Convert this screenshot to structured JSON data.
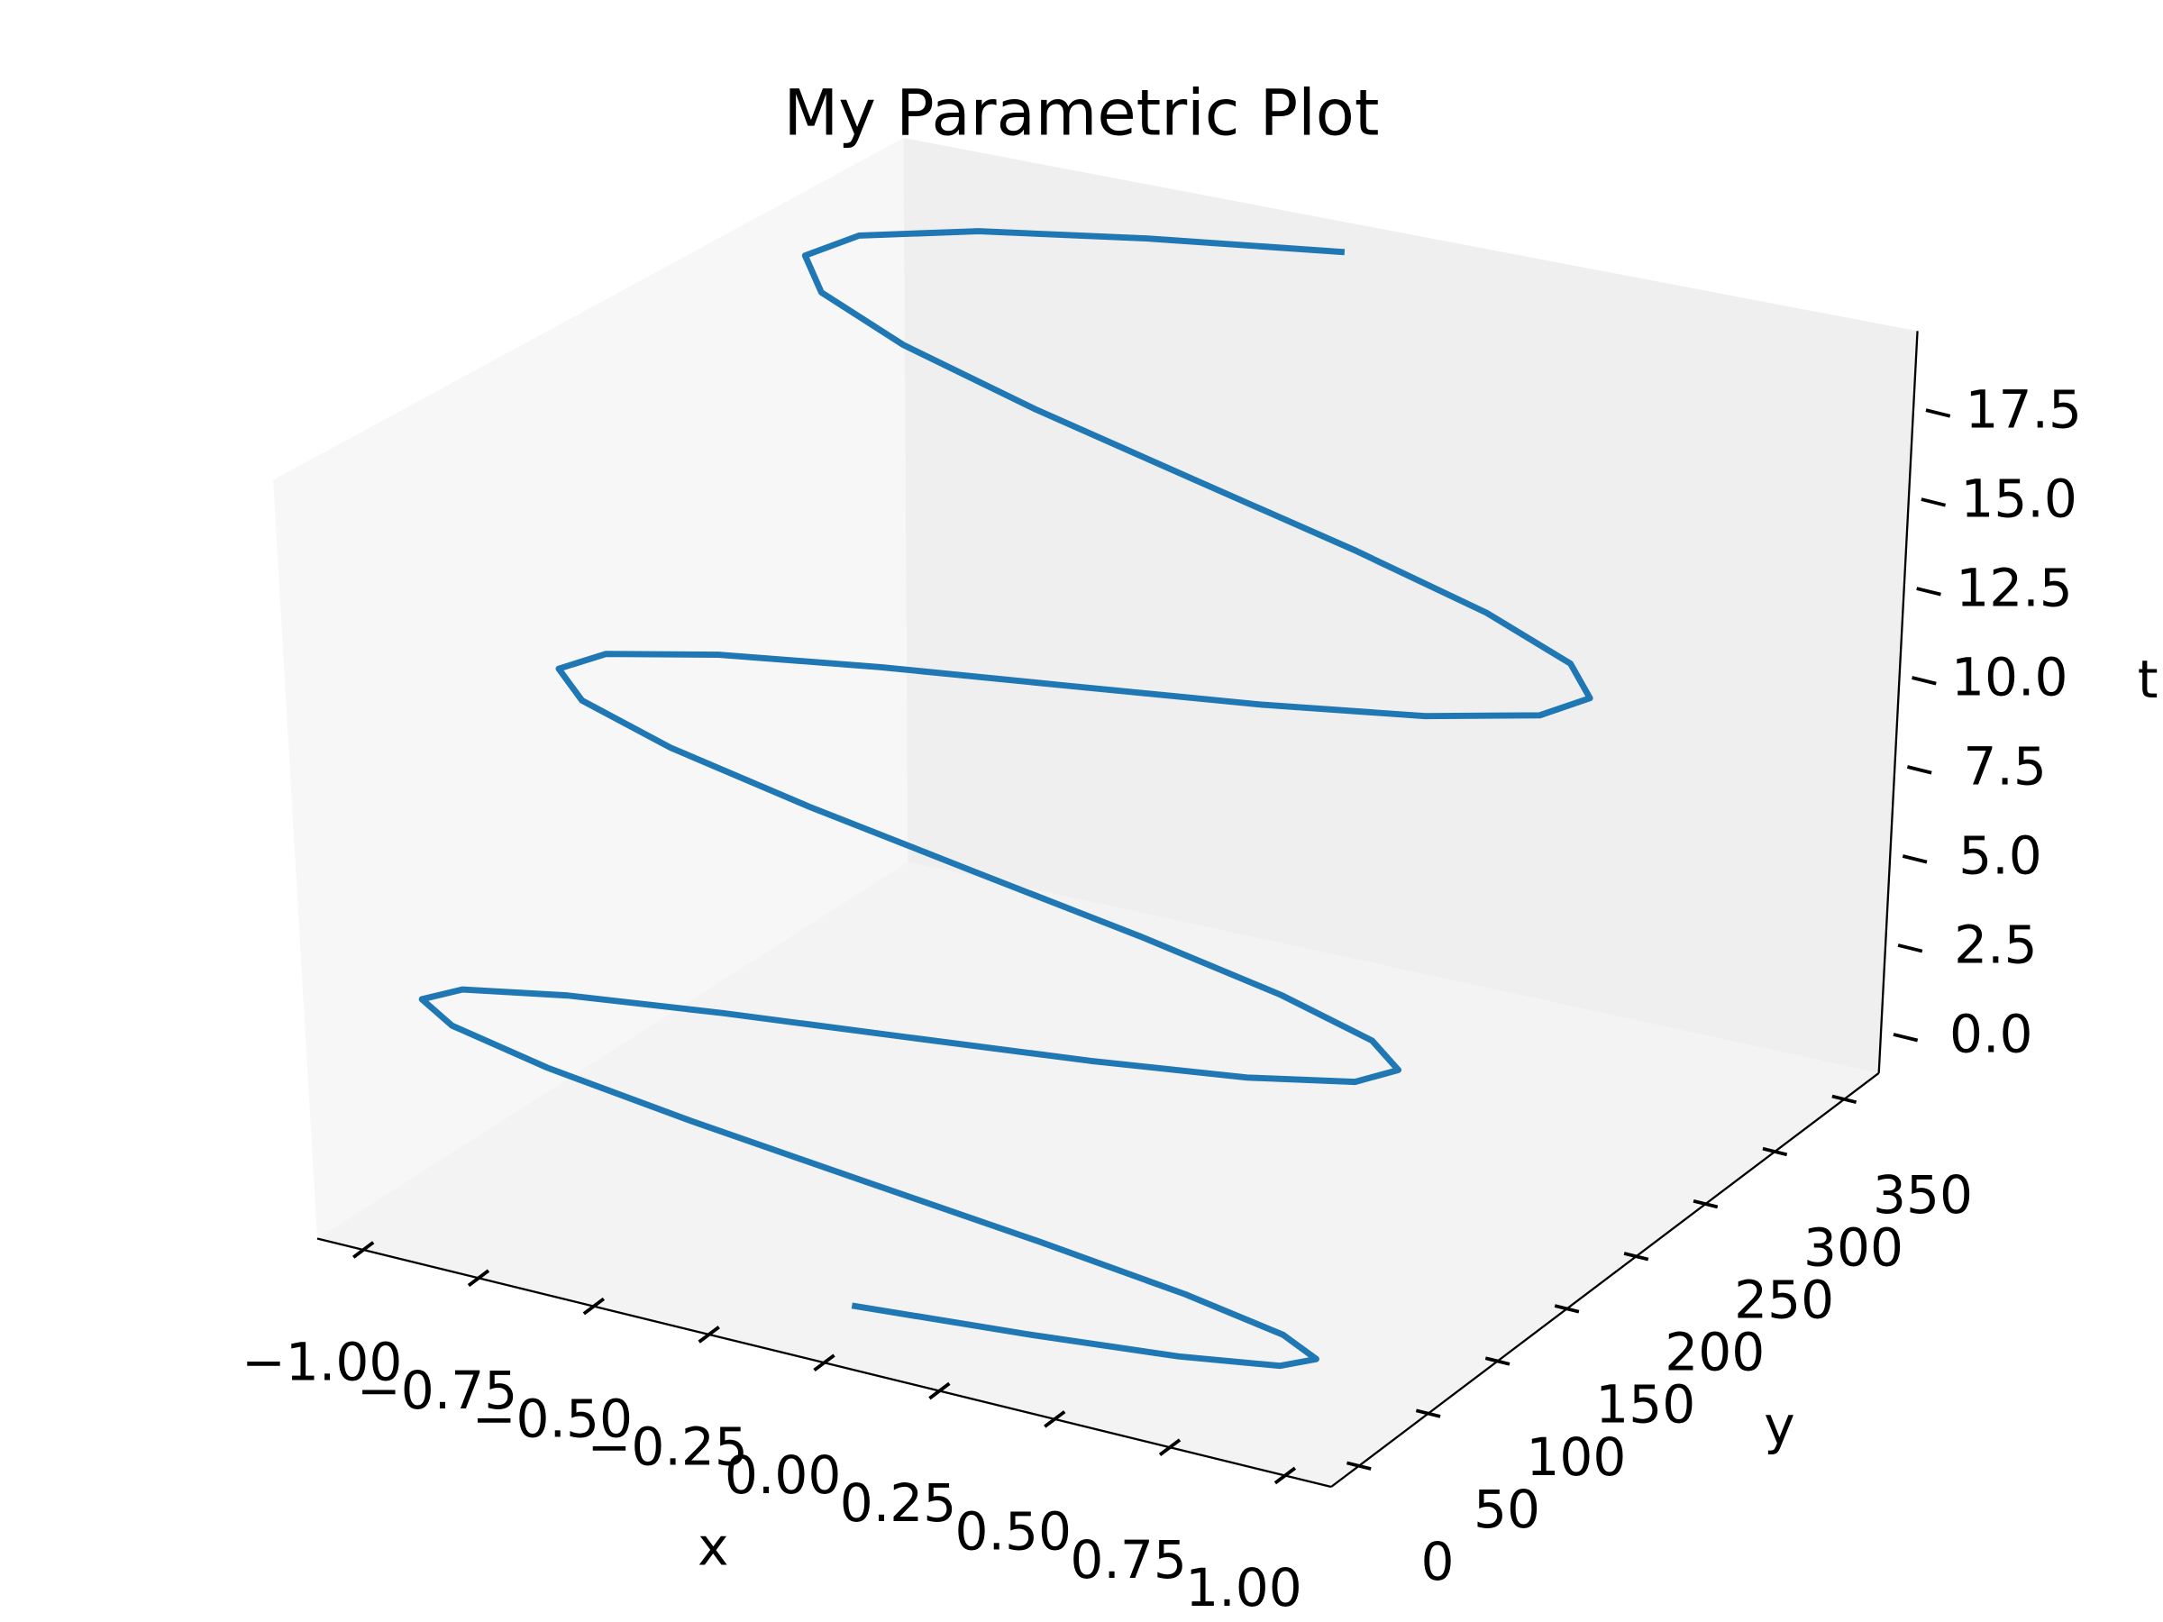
{
  "chart_data": {
    "type": "line3d",
    "title": "My Parametric Plot",
    "xlabel": "x",
    "ylabel": "y",
    "zlabel": "t",
    "color": "#1f77b4",
    "x": [
      0,
      0.383,
      0.707,
      0.924,
      1,
      0.924,
      0.707,
      0.383,
      0,
      -0.383,
      -0.707,
      -0.924,
      -1,
      -0.924,
      -0.707,
      -0.383,
      0,
      0.383,
      0.707,
      0.924,
      1,
      0.924,
      0.707,
      0.383,
      0,
      -0.383,
      -0.707,
      -0.924,
      -1,
      -0.924,
      -0.707,
      -0.383,
      0,
      0.383,
      0.707,
      0.924,
      1,
      0.924,
      0.707,
      0.383,
      0,
      -0.383,
      -0.707,
      -0.924,
      -1,
      -0.924,
      -0.707,
      -0.383,
      0
    ],
    "y": [
      0,
      0.2,
      0.6,
      1.4,
      2.5,
      3.9,
      5.6,
      7.6,
      9.9,
      12.5,
      15.4,
      18.7,
      22.2,
      26.1,
      30.2,
      34.7,
      39.5,
      44.6,
      50.0,
      55.7,
      61.7,
      68.0,
      74.6,
      81.6,
      88.8,
      96.4,
      104.2,
      112.4,
      120.9,
      129.7,
      138.8,
      148.2,
      157.9,
      167.9,
      178.3,
      188.9,
      199.9,
      211.1,
      222.7,
      234.5,
      246.7,
      259.2,
      272.0,
      285.1,
      298.6,
      312.3,
      326.3,
      340.7,
      355.3
    ],
    "z": [
      0,
      0.393,
      0.785,
      1.178,
      1.571,
      1.963,
      2.356,
      2.749,
      3.142,
      3.534,
      3.927,
      4.32,
      4.712,
      5.105,
      5.498,
      5.89,
      6.283,
      6.676,
      7.069,
      7.461,
      7.854,
      8.247,
      8.639,
      9.032,
      9.425,
      9.817,
      10.21,
      10.603,
      10.996,
      11.388,
      11.781,
      12.174,
      12.566,
      12.959,
      13.352,
      13.744,
      14.137,
      14.53,
      14.923,
      15.315,
      15.708,
      16.101,
      16.493,
      16.886,
      17.279,
      17.671,
      18.064,
      18.457,
      18.85
    ],
    "xlim": [
      -1.1,
      1.1
    ],
    "ylim": [
      -20,
      375
    ],
    "zlim": [
      -1,
      19.8
    ],
    "xticks": [
      {
        "value": -1,
        "label": "−1.00"
      },
      {
        "value": -0.75,
        "label": "−0.75"
      },
      {
        "value": -0.5,
        "label": "−0.50"
      },
      {
        "value": -0.25,
        "label": "−0.25"
      },
      {
        "value": 0,
        "label": "0.00"
      },
      {
        "value": 0.25,
        "label": "0.25"
      },
      {
        "value": 0.5,
        "label": "0.50"
      },
      {
        "value": 0.75,
        "label": "0.75"
      },
      {
        "value": 1,
        "label": "1.00"
      }
    ],
    "yticks": [
      0,
      50,
      100,
      150,
      200,
      250,
      300,
      350
    ],
    "zticks": [
      {
        "value": 0,
        "label": "0.0"
      },
      2.5,
      {
        "value": 5,
        "label": "5.0"
      },
      7.5,
      {
        "value": 10,
        "label": "10.0"
      },
      12.5,
      {
        "value": 15,
        "label": "15.0"
      },
      17.5
    ]
  }
}
